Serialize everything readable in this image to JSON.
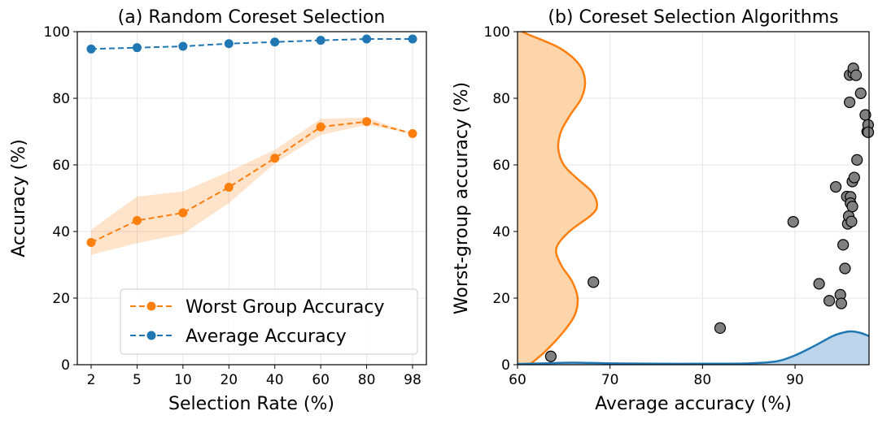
{
  "chart_data": [
    {
      "type": "line",
      "title": "(a) Random Coreset Selection",
      "xlabel": "Selection Rate (%)",
      "ylabel": "Accuracy (%)",
      "categories": [
        "2",
        "5",
        "10",
        "20",
        "40",
        "60",
        "80",
        "98"
      ],
      "ylim": [
        0,
        100
      ],
      "yticks": [
        0,
        20,
        40,
        60,
        80,
        100
      ],
      "grid": true,
      "legend": "bottom-right",
      "series": [
        {
          "name": "Worst Group Accuracy",
          "color": "#ff7f0e",
          "style": "dashed-with-markers",
          "values": [
            36.7,
            43.3,
            45.6,
            53.3,
            62.0,
            71.4,
            73.0,
            69.4
          ],
          "band_lower": [
            33.0,
            36.5,
            39.3,
            48.5,
            60.5,
            69.0,
            72.0,
            69.4
          ],
          "band_upper": [
            40.5,
            50.5,
            52.0,
            58.0,
            64.5,
            73.8,
            74.2,
            69.4
          ]
        },
        {
          "name": "Average Accuracy",
          "color": "#1f77b4",
          "style": "dashed-with-markers",
          "values": [
            94.8,
            95.2,
            95.6,
            96.4,
            96.9,
            97.4,
            97.8,
            97.8
          ]
        }
      ]
    },
    {
      "type": "scatter",
      "title": "(b) Coreset Selection Algorithms",
      "xlabel": "Average accuracy (%)",
      "ylabel": "Worst-group accuracy (%)",
      "xlim": [
        60,
        98
      ],
      "ylim": [
        0,
        100
      ],
      "xticks": [
        60,
        70,
        80,
        90
      ],
      "yticks": [
        0,
        20,
        40,
        60,
        80,
        100
      ],
      "grid": true,
      "point_color": "#808080",
      "points": [
        [
          63.6,
          2.5
        ],
        [
          68.2,
          24.8
        ],
        [
          81.9,
          11.0
        ],
        [
          89.8,
          42.9
        ],
        [
          92.6,
          24.3
        ],
        [
          93.7,
          19.2
        ],
        [
          94.4,
          53.4
        ],
        [
          94.9,
          21.0
        ],
        [
          95.0,
          18.4
        ],
        [
          95.2,
          36.0
        ],
        [
          95.4,
          28.9
        ],
        [
          95.6,
          50.5
        ],
        [
          95.7,
          42.3
        ],
        [
          95.8,
          44.6
        ],
        [
          95.9,
          78.8
        ],
        [
          95.9,
          87.0
        ],
        [
          96.0,
          50.4
        ],
        [
          96.0,
          48.5
        ],
        [
          96.1,
          43.0
        ],
        [
          96.2,
          55.0
        ],
        [
          96.2,
          47.5
        ],
        [
          96.3,
          87.5
        ],
        [
          96.3,
          89.0
        ],
        [
          96.4,
          56.2
        ],
        [
          96.6,
          86.9
        ],
        [
          96.7,
          61.5
        ],
        [
          97.1,
          81.5
        ],
        [
          97.6,
          75.0
        ],
        [
          97.8,
          70.0
        ],
        [
          97.9,
          72.0
        ],
        [
          98.0,
          69.8
        ]
      ],
      "density_y": {
        "color": "#ff7f0e",
        "fill": "#fdd0a2",
        "points": [
          [
            0,
            1.3
          ],
          [
            4,
            3.0
          ],
          [
            10,
            5.0
          ],
          [
            15,
            6.2
          ],
          [
            20,
            6.5
          ],
          [
            25,
            5.9
          ],
          [
            30,
            4.7
          ],
          [
            35,
            4.2
          ],
          [
            40,
            5.6
          ],
          [
            45,
            8.0
          ],
          [
            48,
            8.6
          ],
          [
            52,
            8.0
          ],
          [
            56,
            6.4
          ],
          [
            60,
            5.0
          ],
          [
            65,
            4.4
          ],
          [
            70,
            4.7
          ],
          [
            75,
            5.7
          ],
          [
            80,
            6.9
          ],
          [
            85,
            7.3
          ],
          [
            90,
            6.7
          ],
          [
            95,
            4.6
          ],
          [
            99,
            1.3
          ],
          [
            100,
            0.5
          ]
        ]
      },
      "density_x": {
        "color": "#1f77b4",
        "fill": "#b5d0e8",
        "points": [
          [
            60,
            0.2
          ],
          [
            63,
            0.4
          ],
          [
            66,
            0.6
          ],
          [
            70,
            0.4
          ],
          [
            75,
            0.3
          ],
          [
            80,
            0.3
          ],
          [
            85,
            0.4
          ],
          [
            88,
            1.0
          ],
          [
            90,
            2.8
          ],
          [
            92,
            5.5
          ],
          [
            94,
            8.5
          ],
          [
            95,
            9.5
          ],
          [
            96,
            10.0
          ],
          [
            97,
            9.6
          ],
          [
            98,
            8.6
          ]
        ]
      }
    }
  ]
}
